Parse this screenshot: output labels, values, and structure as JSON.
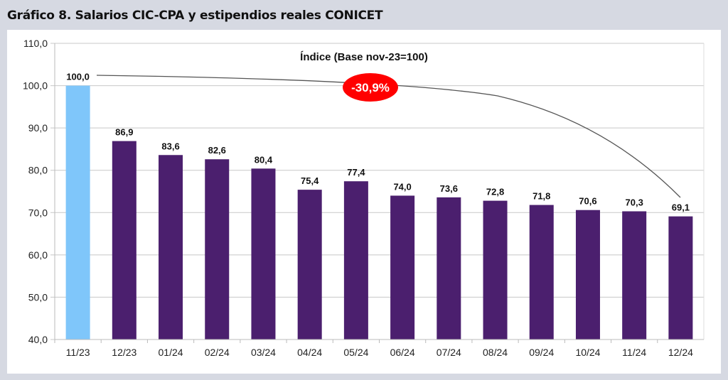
{
  "page_title": "Gráfico 8. Salarios CIC-CPA y estipendios reales CONICET",
  "chart_data": {
    "type": "bar",
    "title": "Índice (Base nov-23=100)",
    "xlabel": "",
    "ylabel": "",
    "categories": [
      "11/23",
      "12/23",
      "01/24",
      "02/24",
      "03/24",
      "04/24",
      "05/24",
      "06/24",
      "07/24",
      "08/24",
      "09/24",
      "10/24",
      "11/24",
      "12/24"
    ],
    "values": [
      100.0,
      86.9,
      83.6,
      82.6,
      80.4,
      75.4,
      77.4,
      74.0,
      73.6,
      72.8,
      71.8,
      70.6,
      70.3,
      69.1
    ],
    "labels": [
      "100,0",
      "86,9",
      "83,6",
      "82,6",
      "80,4",
      "75,4",
      "77,4",
      "74,0",
      "73,6",
      "72,8",
      "71,8",
      "70,6",
      "70,3",
      "69,1"
    ],
    "ylim": [
      40,
      110
    ],
    "yticks": [
      "40,0",
      "50,0",
      "60,0",
      "70,0",
      "80,0",
      "90,0",
      "100,0",
      "110,0"
    ],
    "grid": true,
    "colors": {
      "first_bar": "#7fc6fa",
      "bars": "#4b1f6e",
      "annotation": "#ff0000"
    },
    "annotation": {
      "text": "-30,9%",
      "from": "11/23",
      "to": "12/24"
    }
  }
}
